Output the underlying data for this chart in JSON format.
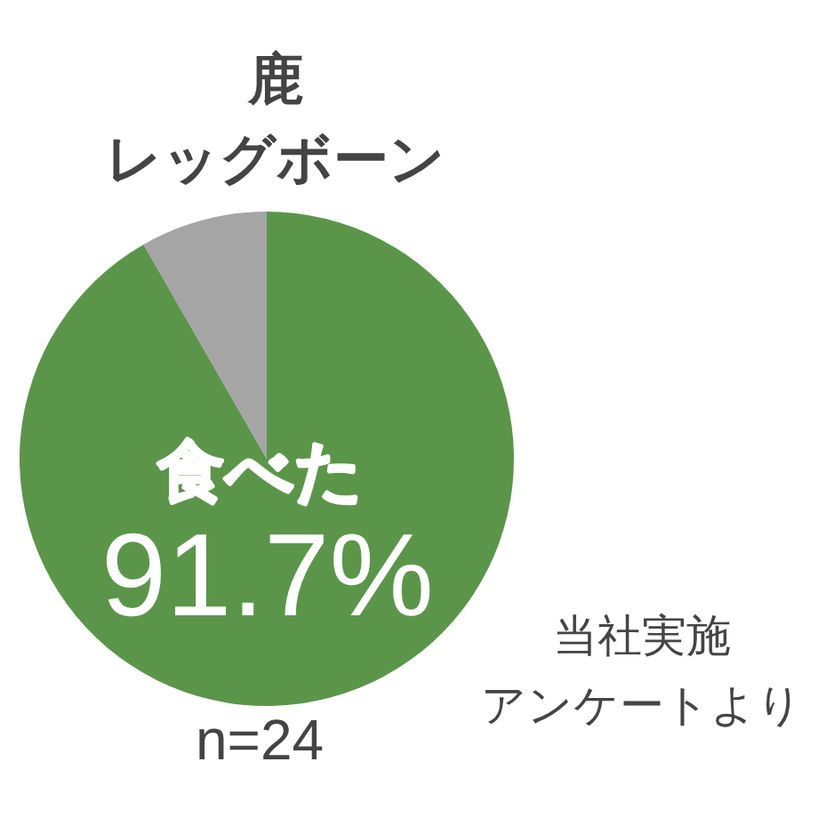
{
  "chart_data": {
    "type": "pie",
    "title": "鹿",
    "subtitle": "レッグボーン",
    "categories": [
      "食べた",
      null
    ],
    "values": [
      91.7,
      8.3
    ],
    "colors": [
      "#5b954a",
      "#a5a5a5"
    ],
    "value_labels": [
      "91.7%",
      null
    ],
    "annotations": [
      "n=24",
      "当社実施",
      "アンケートより"
    ]
  }
}
